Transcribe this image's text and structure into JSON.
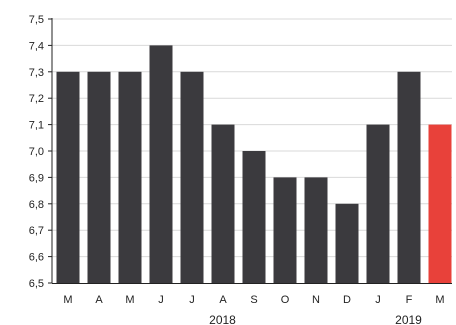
{
  "chart_data": {
    "type": "bar",
    "categories": [
      "M",
      "A",
      "M",
      "J",
      "J",
      "A",
      "S",
      "O",
      "N",
      "D",
      "J",
      "F",
      "M"
    ],
    "values": [
      7.3,
      7.3,
      7.3,
      7.4,
      7.3,
      7.1,
      7.0,
      6.9,
      6.9,
      6.8,
      7.1,
      7.3,
      7.1
    ],
    "highlight_index": 12,
    "ylim": [
      6.5,
      7.5
    ],
    "yticks": [
      "6,5",
      "6,6",
      "6,7",
      "6,8",
      "6,9",
      "7,0",
      "7,1",
      "7,2",
      "7,3",
      "7,4",
      "7,5"
    ],
    "year_labels": [
      {
        "text": "2018",
        "category_index": 5
      },
      {
        "text": "2019",
        "category_index": 11
      }
    ],
    "grid": true,
    "colors": {
      "bar": "#3b3a3e",
      "highlight": "#e8413a",
      "grid": "#d9d9d9",
      "axis": "#222222"
    }
  }
}
